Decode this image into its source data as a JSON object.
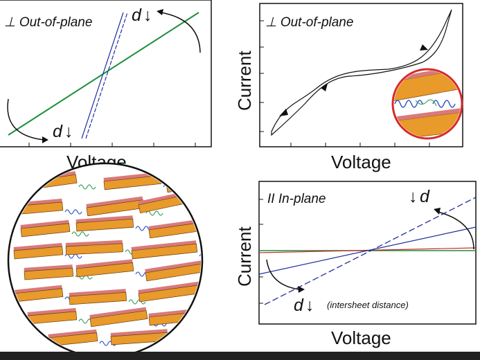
{
  "panels": {
    "top_left": {
      "title": "⊥ Out-of-plane",
      "x_label": "Voltage",
      "d_top": "d",
      "d_bottom": "d",
      "arrow_top": "↓",
      "arrow_bottom": "↓"
    },
    "top_right": {
      "title": "⊥ Out-of-plane",
      "x_label": "Voltage",
      "y_label": "Current"
    },
    "bottom_right": {
      "title": "II  In-plane",
      "x_label": "Voltage",
      "y_label": "Current",
      "d_top": "d",
      "d_bottom": "d",
      "arrow_top": "↓",
      "arrow_bottom": "↓",
      "note": "(intersheet distance)"
    }
  },
  "colors": {
    "green_line": "#1a8f3a",
    "blue_line": "#1f2f9a",
    "red_line": "#cc2a2a",
    "sheet_orange": "#e89a2a",
    "sheet_pink": "#d97a7a",
    "polymer_blue": "#3355cc",
    "polymer_green": "#3aa05a",
    "circle_red": "#d62a2a"
  }
}
